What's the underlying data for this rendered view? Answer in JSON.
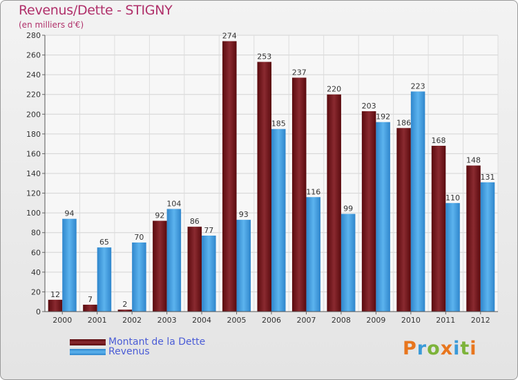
{
  "header": {
    "title": "Revenus/Dette - STIGNY",
    "subtitle": "(en milliers d'€)"
  },
  "legend": {
    "items": [
      {
        "label": "Montant de la Dette",
        "color": "#6b0a10"
      },
      {
        "label": "Revenus",
        "color": "#3e9de0"
      }
    ]
  },
  "logo": {
    "text": "Proxiti",
    "letters": [
      {
        "ch": "P",
        "color": "#e8761e"
      },
      {
        "ch": "r",
        "color": "#3a9ad8"
      },
      {
        "ch": "o",
        "color": "#7db33a"
      },
      {
        "ch": "x",
        "color": "#e8761e"
      },
      {
        "ch": "i",
        "color": "#3a9ad8"
      },
      {
        "ch": "t",
        "color": "#7db33a"
      },
      {
        "ch": "i",
        "color": "#e8761e"
      }
    ]
  },
  "chart_data": {
    "type": "bar",
    "title": "Revenus/Dette - STIGNY",
    "ylabel": "(en milliers d'€)",
    "xlabel": "",
    "ylim": [
      0,
      280
    ],
    "yticks": [
      0,
      20,
      40,
      60,
      80,
      100,
      120,
      140,
      160,
      180,
      200,
      220,
      240,
      260,
      280
    ],
    "grid": true,
    "categories": [
      "2000",
      "2001",
      "2002",
      "2003",
      "2004",
      "2005",
      "2006",
      "2007",
      "2008",
      "2009",
      "2010",
      "2011",
      "2012"
    ],
    "series": [
      {
        "name": "Montant de la Dette",
        "color": "#6b0a10",
        "values": [
          12,
          7,
          2,
          92,
          86,
          274,
          253,
          237,
          220,
          203,
          186,
          168,
          148
        ]
      },
      {
        "name": "Revenus",
        "color": "#3e9de0",
        "values": [
          94,
          65,
          70,
          104,
          77,
          93,
          185,
          116,
          99,
          192,
          223,
          110,
          131
        ]
      }
    ]
  }
}
